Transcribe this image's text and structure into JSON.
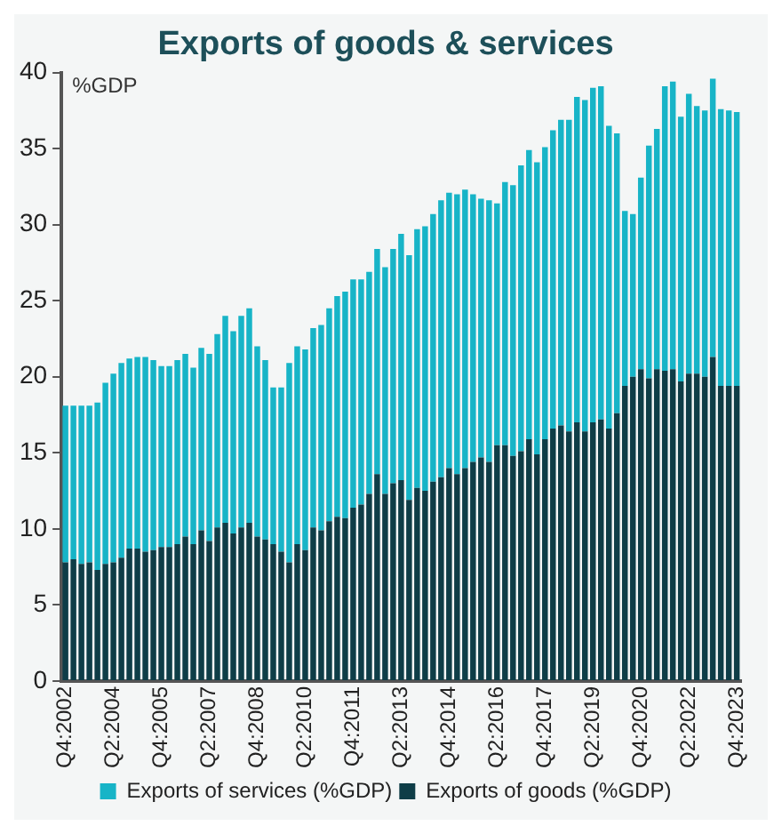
{
  "chart_data": {
    "type": "bar",
    "title": "Exports of goods & services",
    "ylabel": "%GDP",
    "stacked": true,
    "categories": [
      "Q4:2002",
      null,
      null,
      null,
      null,
      null,
      "Q2:2004",
      null,
      null,
      null,
      null,
      null,
      "Q4:2005",
      null,
      null,
      null,
      null,
      null,
      "Q2:2007",
      null,
      null,
      null,
      null,
      null,
      "Q4:2008",
      null,
      null,
      null,
      null,
      null,
      "Q2:2010",
      null,
      null,
      null,
      null,
      null,
      "Q4:2011",
      null,
      null,
      null,
      null,
      null,
      "Q2:2013",
      null,
      null,
      null,
      null,
      null,
      "Q4:2014",
      null,
      null,
      null,
      null,
      null,
      "Q2:2016",
      null,
      null,
      null,
      null,
      null,
      "Q4:2017",
      null,
      null,
      null,
      null,
      null,
      "Q2:2019",
      null,
      null,
      null,
      null,
      null,
      "Q4:2020",
      null,
      null,
      null,
      null,
      null,
      "Q2:2022",
      null,
      null,
      null,
      null,
      null,
      "Q4:2023"
    ],
    "series": [
      {
        "name": "Exports of goods (%GDP)",
        "color": "#0e3d47",
        "values": [
          7.8,
          8.0,
          7.7,
          7.8,
          7.3,
          7.7,
          7.8,
          8.1,
          8.7,
          8.7,
          8.5,
          8.6,
          8.8,
          8.8,
          9.0,
          9.5,
          9.0,
          9.9,
          9.2,
          10.1,
          10.4,
          9.7,
          10.1,
          10.4,
          9.5,
          9.3,
          9.0,
          8.5,
          7.8,
          9.0,
          8.6,
          10.1,
          9.9,
          10.5,
          10.8,
          10.7,
          11.4,
          11.6,
          12.3,
          13.6,
          12.3,
          13.0,
          13.2,
          11.9,
          12.7,
          12.5,
          13.1,
          13.4,
          14.0,
          13.6,
          14.0,
          14.4,
          14.7,
          14.4,
          15.5,
          15.5,
          14.8,
          15.1,
          15.9,
          14.9,
          15.9,
          16.6,
          16.8,
          16.4,
          17.0,
          16.4,
          17.0,
          17.2,
          16.6,
          17.6,
          19.4,
          20.0,
          20.5,
          19.9,
          20.5,
          20.4,
          20.5,
          19.7,
          20.2,
          20.2,
          20.0,
          21.3,
          19.4,
          19.4,
          19.4
        ]
      },
      {
        "name": "Exports of services (%GDP)",
        "color": "#17b4c7",
        "values": [
          10.3,
          10.1,
          10.4,
          10.3,
          11.0,
          11.9,
          12.4,
          12.8,
          12.5,
          12.6,
          12.8,
          12.5,
          11.9,
          11.9,
          12.1,
          12.0,
          11.6,
          12.0,
          12.3,
          12.7,
          13.6,
          13.3,
          13.9,
          14.1,
          12.5,
          11.8,
          10.3,
          10.8,
          13.1,
          13.0,
          13.2,
          13.1,
          13.5,
          14.0,
          14.5,
          14.9,
          15.0,
          14.8,
          14.6,
          14.8,
          14.9,
          15.4,
          16.2,
          16.1,
          17.0,
          17.4,
          17.6,
          18.2,
          18.1,
          18.4,
          18.3,
          17.6,
          17.0,
          17.2,
          15.9,
          17.3,
          17.8,
          18.8,
          19.0,
          19.2,
          19.2,
          19.6,
          20.1,
          20.5,
          21.4,
          21.8,
          22.0,
          21.9,
          19.9,
          18.4,
          11.5,
          10.7,
          12.6,
          15.3,
          15.8,
          18.7,
          18.9,
          17.4,
          18.4,
          17.6,
          17.5,
          18.3,
          18.2,
          18.1,
          18.0
        ]
      }
    ],
    "ylim": [
      0,
      40
    ],
    "yticks": [
      0,
      5,
      10,
      15,
      20,
      25,
      30,
      35,
      40
    ],
    "grid": false,
    "legend": "bottom"
  }
}
